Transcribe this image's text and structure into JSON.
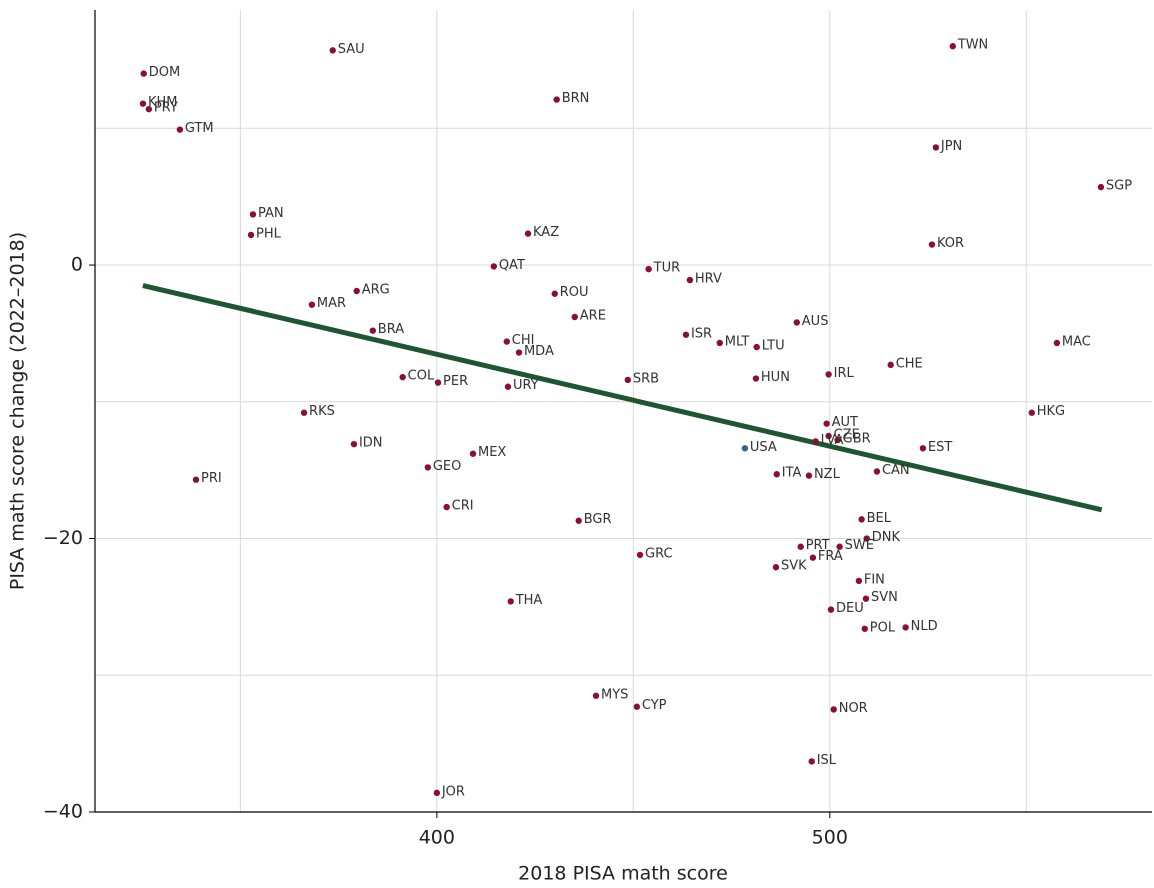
{
  "chart_data": {
    "type": "scatter",
    "x_label": "2018 PISA math score",
    "y_label": "PISA math score change (2022–2018)",
    "xlim": [
      313,
      582
    ],
    "ylim": [
      -40,
      18.65
    ],
    "xticks": [
      400,
      500
    ],
    "yticks": [
      {
        "value": -40,
        "label": "−40"
      },
      {
        "value": -20,
        "label": "−20"
      },
      0
    ],
    "xgrid": [
      350,
      400,
      450,
      500,
      550
    ],
    "ygrid": [
      -30,
      -20,
      -10,
      0,
      10
    ],
    "grid_color": "#d9d9d9",
    "labels": [
      "DOM",
      "KHM",
      "PRY",
      "GTM",
      "SAU",
      "BRN",
      "TWN",
      "JPN",
      "SGP",
      "PAN",
      "PHL",
      "KAZ",
      "KOR",
      "QAT",
      "TUR",
      "HRV",
      "ARG",
      "MAR",
      "ROU",
      "ARE",
      "AUS",
      "BRA",
      "ISR",
      "MLT",
      "LTU",
      "CHI",
      "MDA",
      "MAC",
      "CHE",
      "IRL",
      "COL",
      "PER",
      "URY",
      "SRB",
      "HUN",
      "HKG",
      "RKS",
      "AUT",
      "CZE",
      "GBR",
      "LVA",
      "IDN",
      "USA",
      "EST",
      "MEX",
      "GEO",
      "CAN",
      "ITA",
      "NZL",
      "PRI",
      "CRI",
      "BEL",
      "BGR",
      "DNK",
      "PRT",
      "SWE",
      "GRC",
      "FRA",
      "SVK",
      "FIN",
      "SVN",
      "THA",
      "DEU",
      "POL",
      "NLD",
      "MYS",
      "CYP",
      "NOR",
      "ISL",
      "JOR"
    ],
    "x": [
      325.4,
      325.2,
      326.7,
      334.6,
      373.5,
      430.5,
      531.3,
      527.0,
      569.0,
      353.2,
      352.7,
      423.2,
      526.0,
      414.5,
      453.9,
      464.4,
      379.6,
      368.2,
      430.0,
      435.1,
      491.6,
      383.7,
      463.4,
      472.0,
      481.4,
      417.8,
      420.9,
      557.8,
      515.5,
      499.7,
      391.3,
      400.3,
      418.1,
      448.6,
      481.2,
      551.4,
      366.2,
      499.2,
      499.7,
      502.0,
      496.4,
      378.9,
      478.4,
      523.7,
      409.2,
      397.7,
      512.0,
      486.5,
      494.7,
      338.7,
      402.5,
      508.1,
      436.1,
      509.4,
      492.6,
      502.5,
      451.7,
      495.7,
      486.3,
      507.4,
      509.2,
      418.8,
      500.3,
      508.9,
      519.3,
      440.5,
      450.9,
      501.0,
      495.4,
      400.0
    ],
    "values": [
      14.0,
      11.8,
      11.4,
      9.9,
      15.7,
      12.1,
      16.0,
      8.6,
      5.7,
      3.7,
      2.2,
      2.3,
      1.5,
      -0.1,
      -0.3,
      -1.1,
      -1.9,
      -2.9,
      -2.1,
      -3.8,
      -4.2,
      -4.8,
      -5.1,
      -5.7,
      -6.0,
      -5.6,
      -6.4,
      -5.7,
      -7.3,
      -8.0,
      -8.2,
      -8.6,
      -8.9,
      -8.4,
      -8.3,
      -10.8,
      -10.8,
      -11.6,
      -12.5,
      -12.8,
      -12.9,
      -13.1,
      -13.4,
      -13.4,
      -13.8,
      -14.8,
      -15.1,
      -15.3,
      -15.4,
      -15.7,
      -17.7,
      -18.6,
      -18.7,
      -20.0,
      -20.6,
      -20.6,
      -21.2,
      -21.4,
      -22.1,
      -23.1,
      -24.4,
      -24.6,
      -25.2,
      -26.6,
      -26.5,
      -31.5,
      -32.3,
      -32.5,
      -36.3,
      -38.6
    ],
    "colors": [
      "#8b0e3a",
      "#8b0e3a",
      "#8b0e3a",
      "#8b0e3a",
      "#8b0e3a",
      "#8b0e3a",
      "#8b0e3a",
      "#8b0e3a",
      "#8b0e3a",
      "#8b0e3a",
      "#8b0e3a",
      "#8b0e3a",
      "#8b0e3a",
      "#8b0e3a",
      "#8b0e3a",
      "#8b0e3a",
      "#8b0e3a",
      "#8b0e3a",
      "#8b0e3a",
      "#8b0e3a",
      "#8b0e3a",
      "#8b0e3a",
      "#8b0e3a",
      "#8b0e3a",
      "#8b0e3a",
      "#8b0e3a",
      "#8b0e3a",
      "#8b0e3a",
      "#8b0e3a",
      "#8b0e3a",
      "#8b0e3a",
      "#8b0e3a",
      "#8b0e3a",
      "#8b0e3a",
      "#8b0e3a",
      "#8b0e3a",
      "#8b0e3a",
      "#8b0e3a",
      "#8b0e3a",
      "#8b0e3a",
      "#8b0e3a",
      "#8b0e3a",
      "#3b6184",
      "#8b0e3a",
      "#8b0e3a",
      "#8b0e3a",
      "#8b0e3a",
      "#8b0e3a",
      "#8b0e3a",
      "#8b0e3a",
      "#8b0e3a",
      "#8b0e3a",
      "#8b0e3a",
      "#8b0e3a",
      "#8b0e3a",
      "#8b0e3a",
      "#8b0e3a",
      "#8b0e3a",
      "#8b0e3a",
      "#8b0e3a",
      "#8b0e3a",
      "#8b0e3a",
      "#8b0e3a",
      "#8b0e3a",
      "#8b0e3a",
      "#8b0e3a",
      "#8b0e3a",
      "#8b0e3a",
      "#8b0e3a",
      "#8b0e3a"
    ],
    "trend": {
      "x": [
        325.2,
        569.2
      ],
      "y": [
        -1.5,
        -17.9
      ],
      "color": "#1e5631"
    }
  }
}
